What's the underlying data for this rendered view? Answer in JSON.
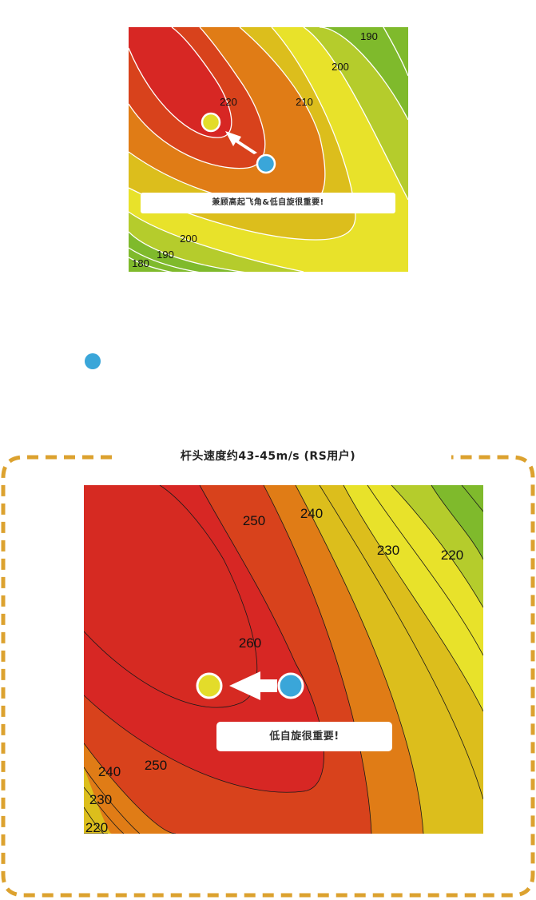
{
  "chart_data": [
    {
      "type": "contour",
      "contour_labels": [
        {
          "text": "190"
        },
        {
          "text": "200"
        },
        {
          "text": "210"
        },
        {
          "text": "220"
        },
        {
          "text": "200"
        },
        {
          "text": "190"
        },
        {
          "text": "180"
        }
      ],
      "annotation": "兼顾高起飞角&低自旋很重要!",
      "colors": {
        "high": "#d72724",
        "mid_high": "#d8421c",
        "mid": "#e07c16",
        "mid_low": "#dcbe1c",
        "low": "#e8e22a",
        "lowest": "#7fba2c",
        "current_marker": "#3aa6d9",
        "target_marker": "#e3dc2a"
      }
    },
    {
      "type": "contour",
      "title": "杆头速度约43-45m/s (RS用户)",
      "contour_labels": [
        {
          "text": "250"
        },
        {
          "text": "240"
        },
        {
          "text": "230"
        },
        {
          "text": "220"
        },
        {
          "text": "260"
        },
        {
          "text": "240"
        },
        {
          "text": "250"
        },
        {
          "text": "230"
        },
        {
          "text": "220"
        }
      ],
      "annotation": "低自旋很重要!",
      "frame_color": "#dca22f",
      "colors": {
        "high": "#d72724",
        "mid_high": "#d8421c",
        "mid": "#e07c16",
        "mid_low": "#dcbe1c",
        "low": "#e8e22a",
        "lowest": "#7fba2c",
        "current_marker": "#3aa6d9",
        "target_marker": "#e3dc2a"
      }
    }
  ],
  "lone_marker_color": "#3aa6d9"
}
